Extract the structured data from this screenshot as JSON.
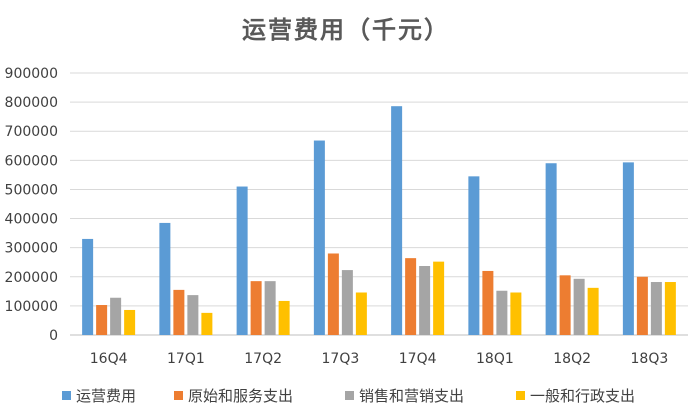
{
  "chart_data": {
    "type": "bar",
    "title": "运营费用（千元）",
    "categories": [
      "16Q4",
      "17Q1",
      "17Q2",
      "17Q3",
      "17Q4",
      "18Q1",
      "18Q2",
      "18Q3"
    ],
    "ylim": [
      0,
      900000
    ],
    "yticks": [
      "0",
      "100000",
      "200000",
      "300000",
      "400000",
      "500000",
      "600000",
      "700000",
      "800000",
      "900000"
    ],
    "series": [
      {
        "name": "运营费用",
        "color": "#5B9BD5",
        "values": [
          330000,
          385000,
          510000,
          668000,
          786000,
          545000,
          590000,
          593000
        ]
      },
      {
        "name": "原始和服务支出",
        "color": "#ED7D31",
        "values": [
          103000,
          155000,
          185000,
          280000,
          264000,
          220000,
          205000,
          200000
        ]
      },
      {
        "name": "销售和营销支出",
        "color": "#A5A5A5",
        "values": [
          128000,
          137000,
          185000,
          223000,
          237000,
          152000,
          193000,
          182000
        ]
      },
      {
        "name": "一般和行政支出",
        "color": "#FFC000",
        "values": [
          86000,
          76000,
          117000,
          146000,
          252000,
          146000,
          162000,
          182000
        ]
      }
    ],
    "grid": true,
    "legend": "bottom"
  }
}
